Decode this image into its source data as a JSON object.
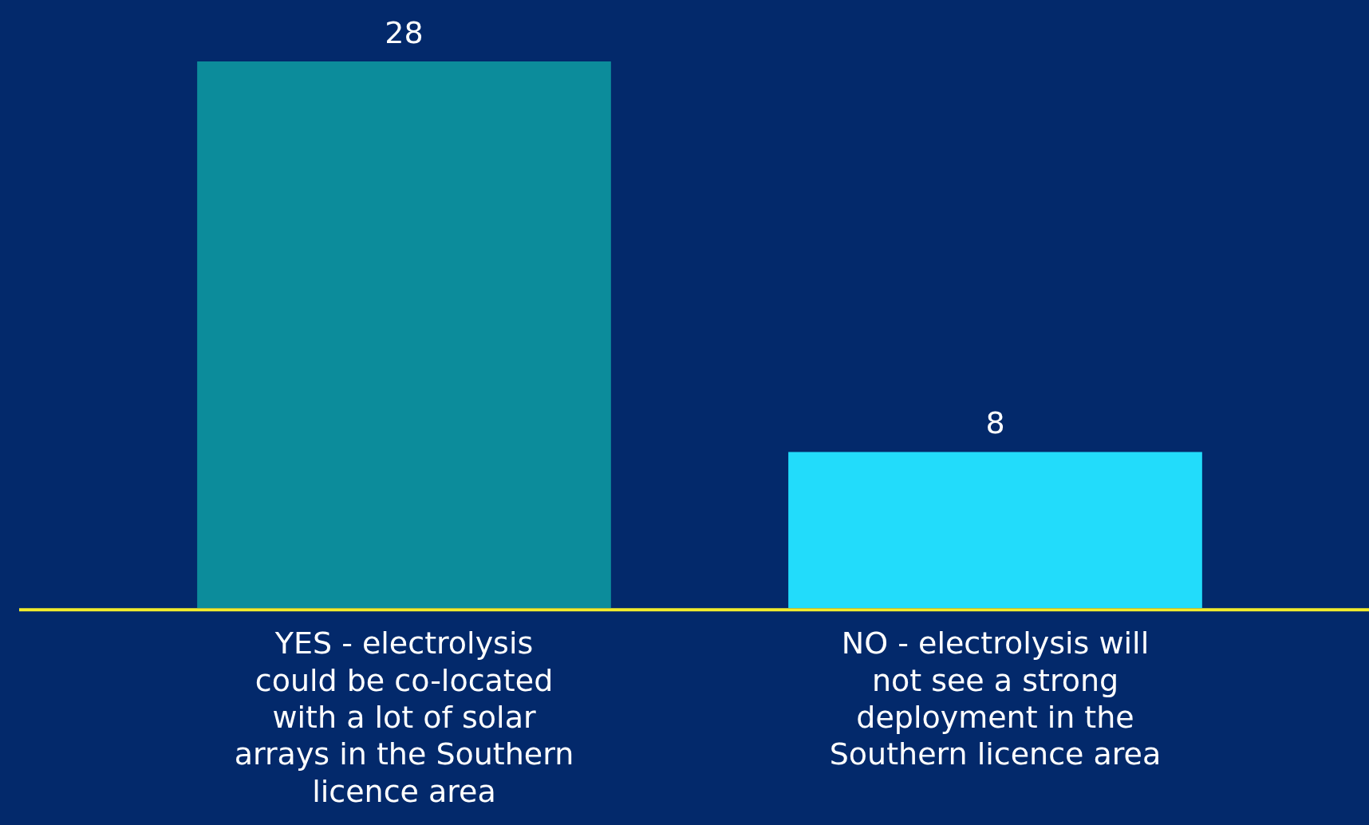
{
  "chart_data": {
    "type": "bar",
    "categories": [
      "YES - electrolysis could be co-located with a lot of solar arrays in the Southern licence area",
      "NO - electrolysis will not see a strong deployment in the Southern licence area"
    ],
    "values": [
      28,
      8
    ],
    "colors": [
      "#0c8c9b",
      "#22dcfb"
    ],
    "data_labels": true,
    "grid": false,
    "legend": false
  }
}
